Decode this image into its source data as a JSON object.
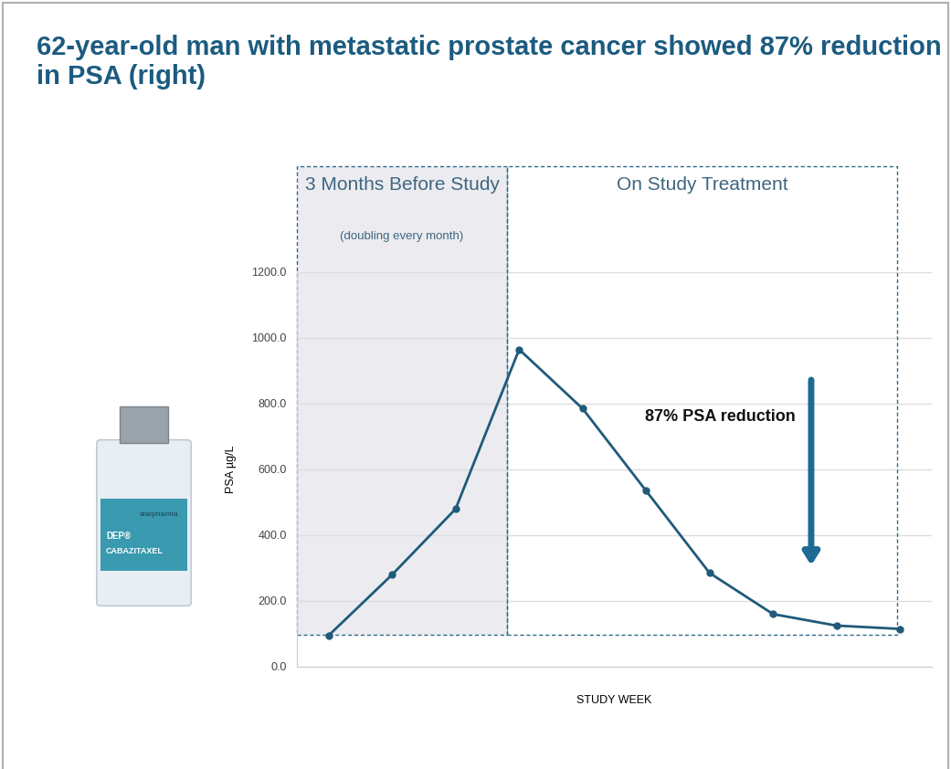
{
  "chart_data": {
    "type": "line",
    "title": "62-year-old man with metastatic prostate cancer showed 87% reduction in PSA (right)",
    "y_label": "PSA µg/L",
    "x_label": "STUDY WEEK",
    "categories": [
      null,
      null,
      null,
      null,
      null,
      null,
      null,
      null,
      null,
      null
    ],
    "values": [
      95,
      280,
      480,
      965,
      785,
      535,
      285,
      160,
      125,
      115
    ],
    "color": "#1f5a7a",
    "marker": "circle",
    "ylim": [
      0,
      1200
    ],
    "yticks": [
      {
        "value": 0,
        "label": "0.0"
      },
      {
        "value": 200,
        "label": "200.0"
      },
      {
        "value": 400,
        "label": "400.0"
      },
      {
        "value": 600,
        "label": "600.0"
      },
      {
        "value": 800,
        "label": "800.0"
      },
      {
        "value": 1000,
        "label": "1000.0"
      },
      {
        "value": 1200,
        "label": "1200.0"
      }
    ],
    "grid": true,
    "tick_labels": "y",
    "annotation": "87% PSA reduction",
    "panels": [
      {
        "label": "3 Months Before Study",
        "note": "(doubling every month)"
      },
      {
        "label": "On Study Treatment"
      }
    ],
    "product_labels": [
      "starpharma",
      "DEP®",
      "CABAZITAXEL"
    ]
  }
}
